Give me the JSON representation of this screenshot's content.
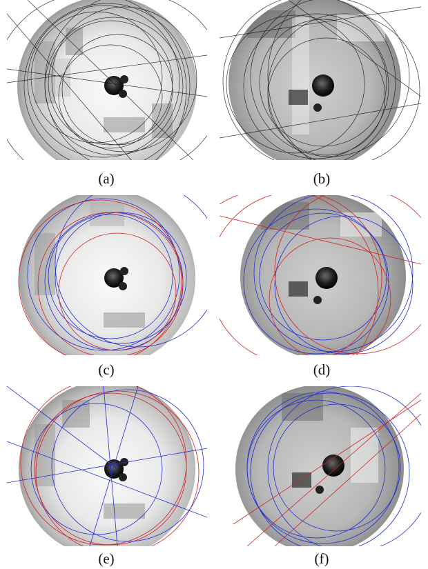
{
  "figure": {
    "panels": [
      {
        "id": "a",
        "caption": "(a)",
        "colors": [
          "#000000"
        ]
      },
      {
        "id": "b",
        "caption": "(b)",
        "colors": [
          "#000000"
        ]
      },
      {
        "id": "c",
        "caption": "(c)",
        "colors": [
          "#1f2bd8",
          "#d22020"
        ]
      },
      {
        "id": "d",
        "caption": "(d)",
        "colors": [
          "#1f2bd8",
          "#d22020"
        ]
      },
      {
        "id": "e",
        "caption": "(e)",
        "colors": [
          "#1f2bd8",
          "#d22020"
        ]
      },
      {
        "id": "f",
        "caption": "(f)",
        "colors": [
          "#1f2bd8",
          "#d22020"
        ]
      }
    ]
  }
}
